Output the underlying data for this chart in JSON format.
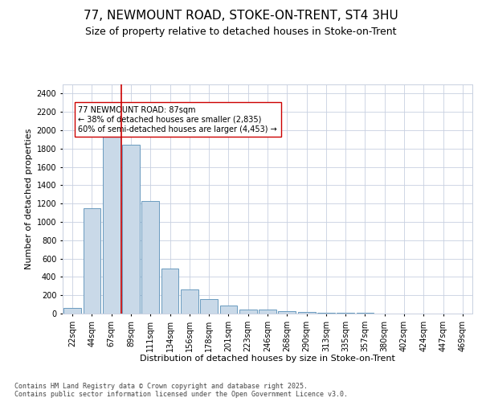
{
  "title_line1": "77, NEWMOUNT ROAD, STOKE-ON-TRENT, ST4 3HU",
  "title_line2": "Size of property relative to detached houses in Stoke-on-Trent",
  "xlabel": "Distribution of detached houses by size in Stoke-on-Trent",
  "ylabel": "Number of detached properties",
  "categories": [
    "22sqm",
    "44sqm",
    "67sqm",
    "89sqm",
    "111sqm",
    "134sqm",
    "156sqm",
    "178sqm",
    "201sqm",
    "223sqm",
    "246sqm",
    "268sqm",
    "290sqm",
    "313sqm",
    "335sqm",
    "357sqm",
    "380sqm",
    "402sqm",
    "424sqm",
    "447sqm",
    "469sqm"
  ],
  "values": [
    60,
    1150,
    1950,
    1840,
    1230,
    490,
    260,
    160,
    90,
    40,
    40,
    30,
    20,
    5,
    5,
    5,
    2,
    2,
    2,
    2,
    2
  ],
  "bar_color": "#c9d9e8",
  "bar_edge_color": "#6a9bbf",
  "property_line_x": 2.5,
  "property_line_color": "#cc0000",
  "annotation_text": "77 NEWMOUNT ROAD: 87sqm\n← 38% of detached houses are smaller (2,835)\n60% of semi-detached houses are larger (4,453) →",
  "annotation_box_color": "#ffffff",
  "annotation_box_edge_color": "#cc0000",
  "ylim": [
    0,
    2500
  ],
  "yticks": [
    0,
    200,
    400,
    600,
    800,
    1000,
    1200,
    1400,
    1600,
    1800,
    2000,
    2200,
    2400
  ],
  "background_color": "#ffffff",
  "grid_color": "#c8d0e0",
  "footer_text": "Contains HM Land Registry data © Crown copyright and database right 2025.\nContains public sector information licensed under the Open Government Licence v3.0.",
  "title_fontsize": 11,
  "subtitle_fontsize": 9,
  "axis_label_fontsize": 8,
  "tick_fontsize": 7,
  "annotation_fontsize": 7,
  "footer_fontsize": 6
}
